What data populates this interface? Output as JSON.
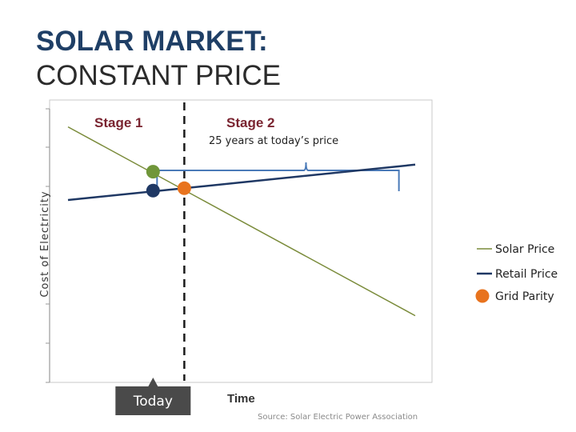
{
  "slide": {
    "title_line1": "SOLAR MARKET:",
    "title_line2": "CONSTANT PRICE"
  },
  "colors": {
    "solar": "#7a8b3a",
    "retail": "#1f3864",
    "grid_parity": "#e8731e",
    "stage1_point": "#70963a",
    "stage_label": "#7a2430"
  },
  "chart_data": {
    "type": "line",
    "xlabel": "Time",
    "ylabel": "Cost of Electricity",
    "xlim": [
      0,
      100
    ],
    "ylim": [
      0,
      100
    ],
    "grid": false,
    "legend_position": "right",
    "series": [
      {
        "name": "Solar Price",
        "color": "#7a8b3a",
        "x": [
          0,
          100
        ],
        "y": [
          92,
          12
        ]
      },
      {
        "name": "Retail Price",
        "color": "#1f3864",
        "x": [
          0,
          100
        ],
        "y": [
          61,
          76
        ]
      }
    ],
    "points": [
      {
        "name": "Grid Parity",
        "color": "#e8731e",
        "x": 33.5,
        "y": 66
      },
      {
        "name": "",
        "color": "#70963a",
        "x": 24.5,
        "y": 73
      },
      {
        "name": "",
        "color": "#1f3864",
        "x": 24.5,
        "y": 65
      }
    ],
    "stage_divider_x": 33.5,
    "stages": [
      "Stage 1",
      "Stage 2"
    ],
    "bracket_text": "25 years at today’s price",
    "bracket_range": [
      24.5,
      96
    ],
    "today_label": "Today",
    "today_x": 24.5,
    "source": "Source: Solar Electric Power Association"
  }
}
